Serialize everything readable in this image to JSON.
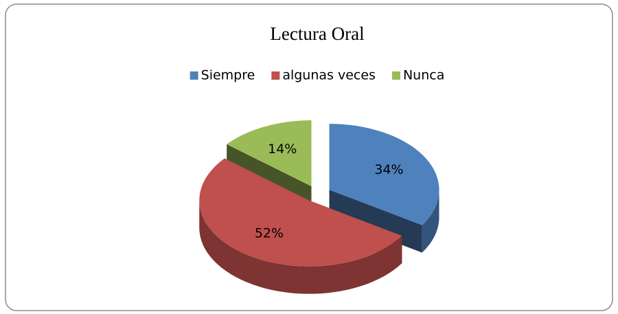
{
  "chart_data": {
    "type": "pie3d",
    "title": "Lectura Oral",
    "categories": [
      "Siempre",
      "algunas veces",
      "Nunca"
    ],
    "values": [
      34,
      52,
      14
    ],
    "value_labels": [
      "34%",
      "52%",
      "14%"
    ],
    "colors": [
      "#4f81bd",
      "#c0504d",
      "#9bbb59"
    ],
    "legend": "top"
  }
}
